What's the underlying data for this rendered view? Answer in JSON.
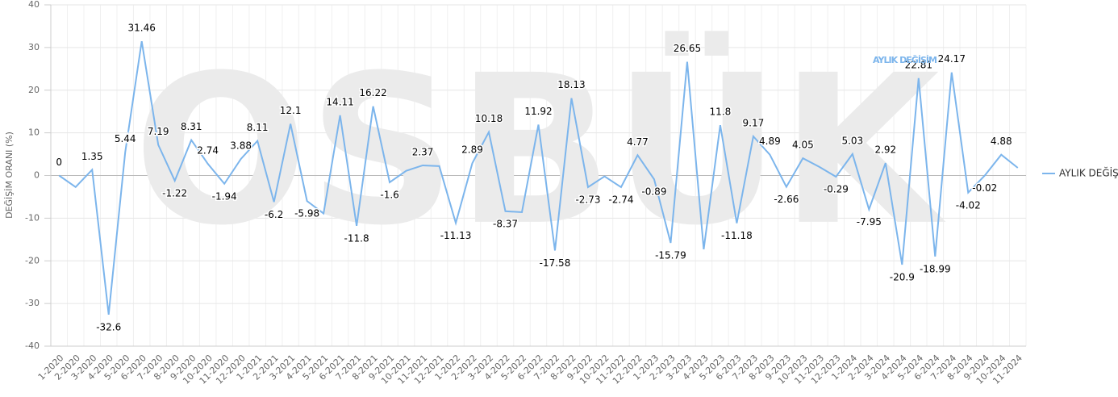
{
  "chart_data": {
    "type": "line",
    "watermark": "OSBÜK",
    "y_label": "DEĞİŞİM ORANI (%)",
    "categories": [
      "1-2020",
      "2-2020",
      "3-2020",
      "4-2020",
      "5-2020",
      "6-2020",
      "7-2020",
      "8-2020",
      "9-2020",
      "10-2020",
      "11-2020",
      "12-2020",
      "1-2021",
      "2-2021",
      "3-2021",
      "4-2021",
      "5-2021",
      "6-2021",
      "7-2021",
      "8-2021",
      "9-2021",
      "10-2021",
      "11-2021",
      "12-2021",
      "1-2022",
      "2-2022",
      "3-2022",
      "4-2022",
      "5-2022",
      "6-2022",
      "7-2022",
      "8-2022",
      "9-2022",
      "10-2022",
      "11-2022",
      "12-2022",
      "1-2023",
      "2-2023",
      "3-2023",
      "4-2023",
      "5-2023",
      "6-2023",
      "7-2023",
      "8-2023",
      "9-2023",
      "10-2023",
      "11-2023",
      "12-2023",
      "1-2024",
      "2-2024",
      "3-2024",
      "4-2024",
      "5-2024",
      "6-2024",
      "7-2024",
      "8-2024",
      "9-2024",
      "10-2024",
      "11-2024"
    ],
    "series": [
      {
        "name": "AYLIK DEĞİŞİM",
        "color": "#7cb5ec",
        "values": [
          0,
          -2.7,
          1.35,
          -32.6,
          5.44,
          31.46,
          7.19,
          -1.22,
          8.31,
          2.74,
          -1.94,
          3.88,
          8.11,
          -6.2,
          12.1,
          -5.98,
          -8.9,
          14.11,
          -11.8,
          16.22,
          -1.6,
          1.1,
          2.37,
          2.2,
          -11.13,
          2.89,
          10.18,
          -8.37,
          -8.6,
          11.92,
          -17.58,
          18.13,
          -2.73,
          -0.2,
          -2.74,
          4.77,
          -0.89,
          -15.79,
          26.65,
          -17.3,
          11.8,
          -11.18,
          9.17,
          4.89,
          -2.66,
          4.05,
          2,
          -0.29,
          5.03,
          -7.95,
          2.92,
          -20.9,
          22.81,
          -18.99,
          24.17,
          -4.02,
          -0.02,
          4.88,
          1.8
        ],
        "value_labels": [
          "0",
          null,
          "1.35",
          "-32.6",
          "5.44",
          "31.46",
          "7.19",
          "-1.22",
          "8.31",
          "2.74",
          "-1.94",
          "3.88",
          "8.11",
          "-6.2",
          "12.1",
          "-5.98",
          null,
          "14.11",
          "-11.8",
          "16.22",
          "-1.6",
          null,
          "2.37",
          null,
          "-11.13",
          "2.89",
          "10.18",
          "-8.37",
          null,
          "11.92",
          "-17.58",
          "18.13",
          "-2.73",
          null,
          "-2.74",
          "4.77",
          "-0.89",
          "-15.79",
          "26.65",
          null,
          "11.8",
          "-11.18",
          "9.17",
          "4.89",
          "-2.66",
          "4.05",
          null,
          "-0.29",
          "5.03",
          "-7.95",
          "2.92",
          "-20.9",
          "22.81",
          "-18.99",
          "24.17",
          "-4.02",
          "-0.02",
          "4.88",
          null
        ]
      }
    ],
    "ylim": [
      -40,
      40
    ],
    "yticks": [
      -40,
      -30,
      -20,
      -10,
      0,
      10,
      20,
      30,
      40
    ],
    "grid": true,
    "legend": "right"
  }
}
